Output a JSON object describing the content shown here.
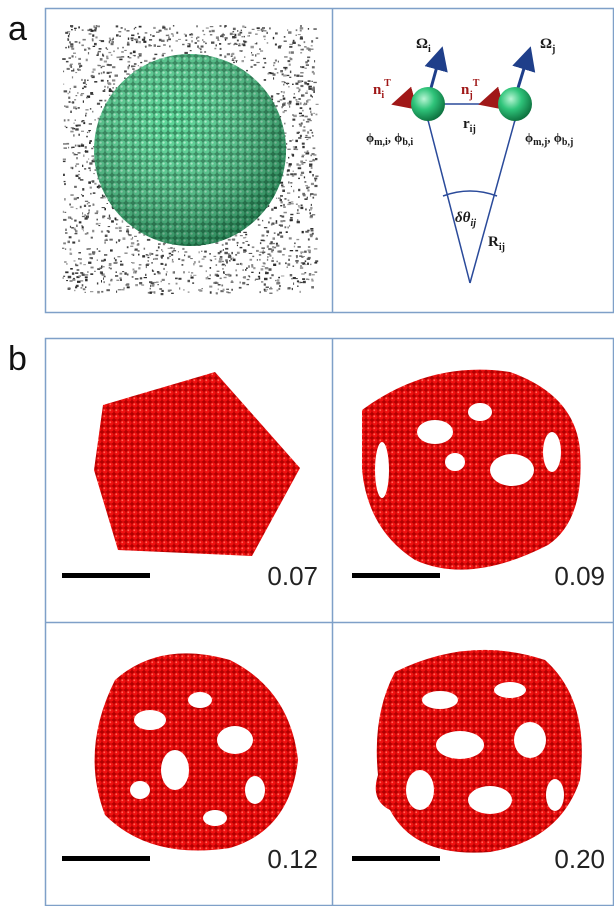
{
  "panel_a": {
    "label": "a",
    "diagram": {
      "omega_i": {
        "base": "Ω",
        "sub": "i"
      },
      "omega_j": {
        "base": "Ω",
        "sub": "j"
      },
      "n_i": {
        "base": "n",
        "sub": "i",
        "sup": "T"
      },
      "n_j": {
        "base": "n",
        "sub": "j",
        "sup": "T"
      },
      "r_ij": {
        "base": "r",
        "sub": "ij"
      },
      "phi_i": {
        "m_base": "ϕ",
        "m_sub": "m,i",
        "separator": ", ",
        "b_base": "ϕ",
        "b_sub": "b,i"
      },
      "phi_j": {
        "m_base": "ϕ",
        "m_sub": "m,j",
        "separator": ", ",
        "b_base": "ϕ",
        "b_sub": "b,j"
      },
      "delta_theta": {
        "base": "δθ",
        "sub": "ij"
      },
      "R_ij": {
        "base": "R",
        "sub": "ij"
      }
    }
  },
  "panel_b": {
    "label": "b",
    "cells": [
      {
        "value": "0.07"
      },
      {
        "value": "0.09"
      },
      {
        "value": "0.12"
      },
      {
        "value": "0.20"
      }
    ]
  }
}
